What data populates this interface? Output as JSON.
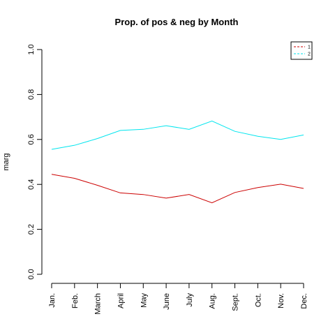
{
  "chart_data": {
    "type": "line",
    "title": "Prop. of pos & neg by Month",
    "xlabel": "",
    "ylabel": "marg",
    "categories": [
      "Jan.",
      "Feb.",
      "March",
      "April",
      "May",
      "June",
      "July",
      "Aug.",
      "Sept.",
      "Oct.",
      "Nov.",
      "Dec."
    ],
    "ylim": [
      0,
      1
    ],
    "yticks": [
      "0.0",
      "0.2",
      "0.4",
      "0.6",
      "0.8",
      "1.0"
    ],
    "series": [
      {
        "name": "1",
        "color": "#cc0000",
        "values": [
          0.445,
          0.427,
          0.396,
          0.362,
          0.355,
          0.339,
          0.355,
          0.318,
          0.364,
          0.386,
          0.401,
          0.382
        ]
      },
      {
        "name": "2",
        "color": "#00e5ee",
        "values": [
          0.556,
          0.574,
          0.604,
          0.64,
          0.645,
          0.661,
          0.645,
          0.682,
          0.636,
          0.614,
          0.6,
          0.62
        ]
      }
    ],
    "legend": {
      "position": "top-right",
      "line_style": "dashed"
    },
    "grid": false
  }
}
